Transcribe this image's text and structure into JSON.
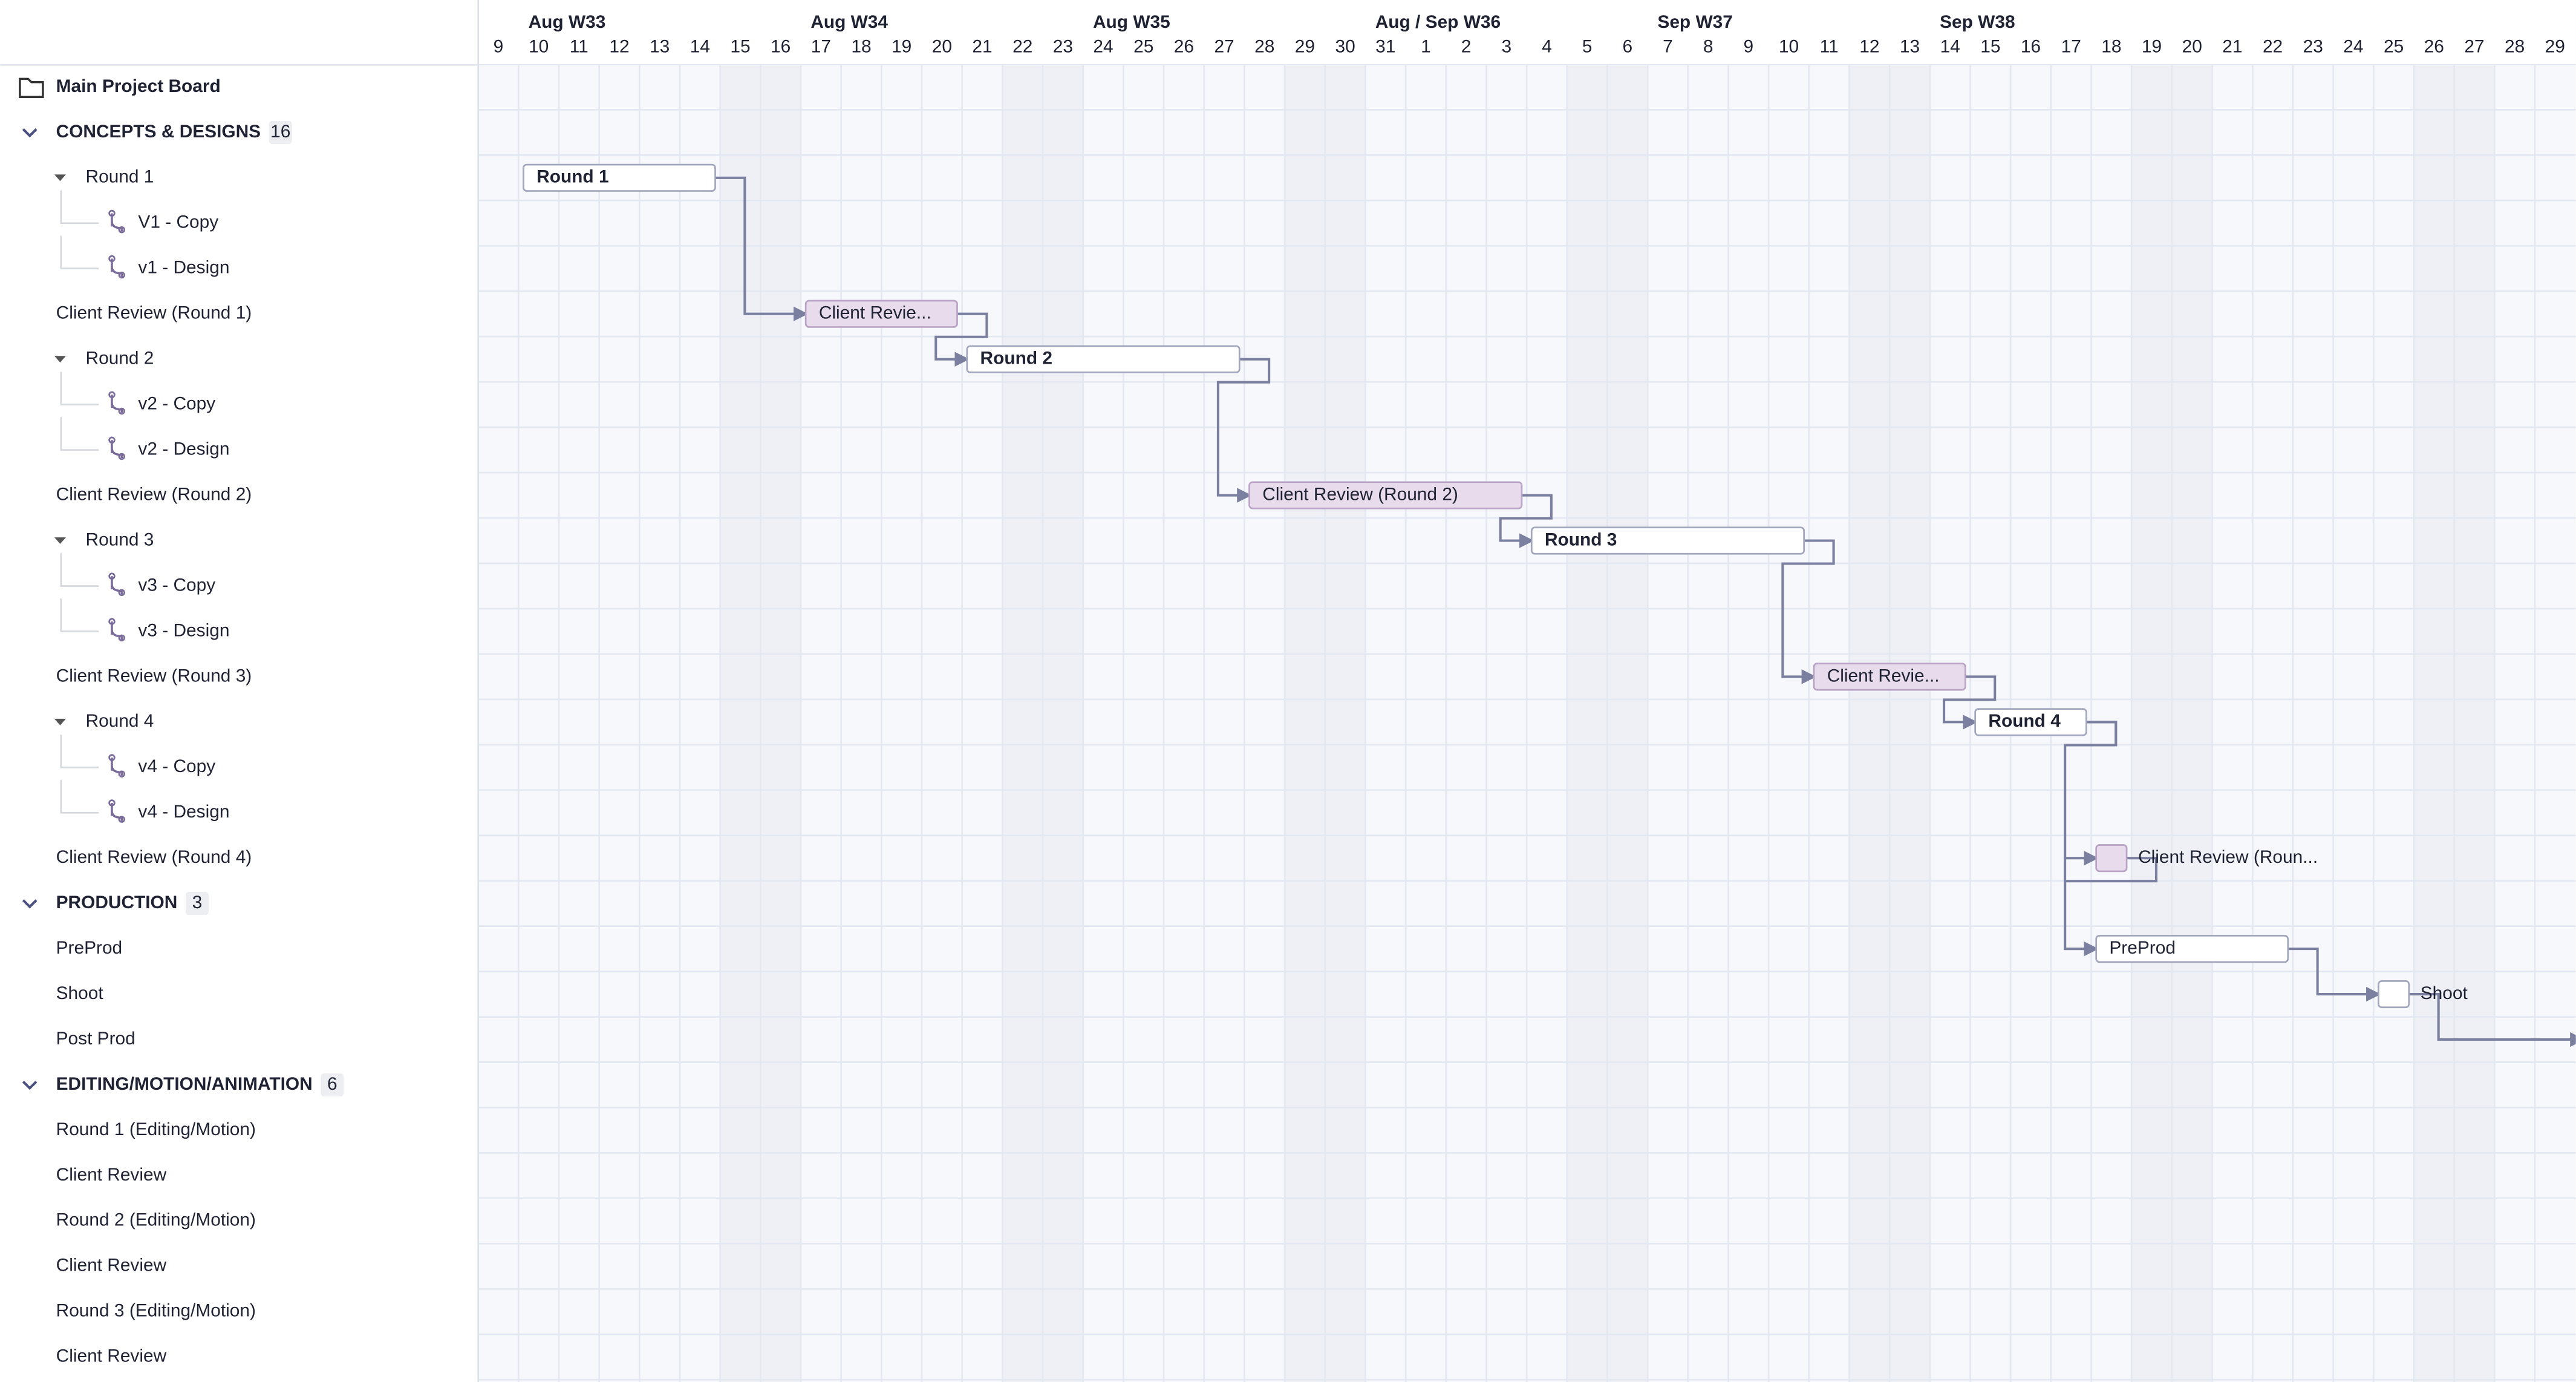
{
  "sidebar": {
    "title": "Main Project Board",
    "groups": [
      {
        "name": "CONCEPTS & DESIGNS",
        "count": 16,
        "items": [
          {
            "label": "Round 1",
            "children": [
              "V1 - Copy",
              "v1 - Design"
            ]
          },
          {
            "label": "Client Review (Round 1)"
          },
          {
            "label": "Round 2",
            "children": [
              "v2 - Copy",
              "v2 - Design"
            ]
          },
          {
            "label": "Client Review (Round 2)"
          },
          {
            "label": "Round 3",
            "children": [
              "v3 - Copy",
              "v3 - Design"
            ]
          },
          {
            "label": "Client Review (Round 3)"
          },
          {
            "label": "Round 4",
            "children": [
              "v4 - Copy",
              "v4 - Design"
            ]
          },
          {
            "label": "Client Review (Round 4)"
          }
        ]
      },
      {
        "name": "PRODUCTION",
        "count": 3,
        "items": [
          {
            "label": "PreProd"
          },
          {
            "label": "Shoot"
          },
          {
            "label": "Post Prod"
          }
        ]
      },
      {
        "name": "EDITING/MOTION/ANIMATION",
        "count": 6,
        "items": [
          {
            "label": "Round 1 (Editing/Motion)"
          },
          {
            "label": "Client Review"
          },
          {
            "label": "Round 2 (Editing/Motion)"
          },
          {
            "label": "Client Review"
          },
          {
            "label": "Round 3 (Editing/Motion)"
          },
          {
            "label": "Client Review"
          }
        ]
      }
    ]
  },
  "timeline": {
    "weeks": [
      "Aug W33",
      "Aug W34",
      "Aug W35",
      "Aug / Sep W36",
      "Sep W37",
      "Sep W38"
    ],
    "days": [
      9,
      10,
      11,
      12,
      13,
      14,
      15,
      16,
      17,
      18,
      19,
      20,
      21,
      22,
      23,
      24,
      25,
      26,
      27,
      28,
      29,
      30,
      31,
      1,
      2,
      3,
      4,
      5,
      6,
      7,
      8,
      9,
      10,
      11,
      12,
      13,
      14,
      15,
      16,
      17,
      18,
      19,
      20,
      21,
      22,
      23,
      24,
      25,
      26,
      27,
      28,
      29
    ],
    "bars": [
      "Round 1",
      "Client Revie...",
      "Round 2",
      "Client Review (Round 2)",
      "Round 3",
      "Client Revie...",
      "Round 4",
      "Client Review (Roun...",
      "PreProd",
      "Shoot"
    ]
  }
}
